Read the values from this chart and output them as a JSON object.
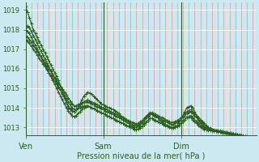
{
  "xlabel": "Pression niveau de la mer( hPa )",
  "bg_color": "#cce8f0",
  "line_color": "#2d6020",
  "tick_color": "#2d6020",
  "axis_color": "#2d6020",
  "red_grid_color": "#e88080",
  "white_grid_color": "#ffffff",
  "ylim": [
    1012.6,
    1019.4
  ],
  "yticks": [
    1013,
    1014,
    1015,
    1016,
    1017,
    1018,
    1019
  ],
  "day_labels": [
    "Ven",
    "Sam",
    "Dim"
  ],
  "day_positions": [
    0,
    40,
    80
  ],
  "total_points": 120,
  "series": [
    [
      1019.2,
      1018.9,
      1018.6,
      1018.3,
      1018.0,
      1017.8,
      1017.6,
      1017.4,
      1017.2,
      1017.0,
      1016.8,
      1016.6,
      1016.4,
      1016.2,
      1016.0,
      1015.8,
      1015.6,
      1015.4,
      1015.1,
      1014.9,
      1014.6,
      1014.3,
      1014.0,
      1013.9,
      1013.85,
      1013.8,
      1013.9,
      1014.0,
      1014.2,
      1014.4,
      1014.6,
      1014.7,
      1014.8,
      1014.75,
      1014.7,
      1014.6,
      1014.5,
      1014.4,
      1014.3,
      1014.2,
      1014.15,
      1014.1,
      1014.05,
      1014.0,
      1013.95,
      1013.9,
      1013.85,
      1013.8,
      1013.7,
      1013.6,
      1013.5,
      1013.4,
      1013.3,
      1013.2,
      1013.1,
      1013.05,
      1013.0,
      1013.0,
      1013.05,
      1013.1,
      1013.2,
      1013.35,
      1013.5,
      1013.6,
      1013.7,
      1013.7,
      1013.65,
      1013.6,
      1013.5,
      1013.4,
      1013.3,
      1013.2,
      1013.15,
      1013.1,
      1013.05,
      1013.0,
      1013.0,
      1013.05,
      1013.1,
      1013.2,
      1013.4,
      1013.6,
      1013.8,
      1014.0,
      1014.05,
      1014.1,
      1014.0,
      1013.8,
      1013.6,
      1013.4,
      1013.2,
      1013.1,
      1013.0,
      1012.95,
      1012.9,
      1012.88,
      1012.86,
      1012.84,
      1012.82,
      1012.8,
      1012.78,
      1012.76,
      1012.74,
      1012.72,
      1012.7,
      1012.68,
      1012.66,
      1012.64,
      1012.62,
      1012.6,
      1012.58,
      1012.56,
      1012.54,
      1012.52,
      1012.5,
      1012.5,
      1012.5,
      1012.5,
      1012.5,
      1012.5
    ],
    [
      1018.0,
      1017.9,
      1017.8,
      1017.6,
      1017.4,
      1017.2,
      1017.0,
      1016.8,
      1016.6,
      1016.4,
      1016.2,
      1016.0,
      1015.8,
      1015.6,
      1015.4,
      1015.2,
      1015.0,
      1014.8,
      1014.6,
      1014.4,
      1014.2,
      1014.0,
      1013.85,
      1013.7,
      1013.6,
      1013.55,
      1013.6,
      1013.7,
      1013.8,
      1013.9,
      1014.0,
      1014.05,
      1014.1,
      1014.05,
      1014.0,
      1013.95,
      1013.9,
      1013.85,
      1013.8,
      1013.75,
      1013.7,
      1013.65,
      1013.6,
      1013.55,
      1013.5,
      1013.45,
      1013.4,
      1013.35,
      1013.3,
      1013.25,
      1013.2,
      1013.15,
      1013.1,
      1013.05,
      1013.0,
      1012.95,
      1012.9,
      1012.88,
      1012.92,
      1012.98,
      1013.05,
      1013.15,
      1013.25,
      1013.35,
      1013.45,
      1013.45,
      1013.4,
      1013.35,
      1013.3,
      1013.25,
      1013.2,
      1013.15,
      1013.1,
      1013.05,
      1013.0,
      1012.95,
      1012.95,
      1013.0,
      1013.05,
      1013.1,
      1013.2,
      1013.3,
      1013.4,
      1013.5,
      1013.5,
      1013.5,
      1013.4,
      1013.3,
      1013.2,
      1013.1,
      1013.0,
      1012.95,
      1012.9,
      1012.88,
      1012.86,
      1012.84,
      1012.82,
      1012.8,
      1012.78,
      1012.76,
      1012.74,
      1012.72,
      1012.7,
      1012.68,
      1012.66,
      1012.64,
      1012.62,
      1012.6,
      1012.58,
      1012.56,
      1012.54,
      1012.52,
      1012.5,
      1012.5,
      1012.5,
      1012.5,
      1012.5,
      1012.5,
      1012.5,
      1012.5
    ],
    [
      1017.9,
      1018.2,
      1018.1,
      1017.9,
      1017.7,
      1017.5,
      1017.3,
      1017.1,
      1016.9,
      1016.7,
      1016.5,
      1016.3,
      1016.1,
      1015.9,
      1015.7,
      1015.5,
      1015.3,
      1015.1,
      1014.9,
      1014.7,
      1014.5,
      1014.3,
      1014.1,
      1013.95,
      1013.85,
      1013.8,
      1013.9,
      1014.0,
      1014.1,
      1014.2,
      1014.3,
      1014.35,
      1014.4,
      1014.35,
      1014.3,
      1014.25,
      1014.2,
      1014.15,
      1014.1,
      1014.05,
      1014.0,
      1013.95,
      1013.9,
      1013.85,
      1013.8,
      1013.75,
      1013.7,
      1013.65,
      1013.6,
      1013.55,
      1013.5,
      1013.45,
      1013.4,
      1013.35,
      1013.3,
      1013.25,
      1013.2,
      1013.18,
      1013.22,
      1013.28,
      1013.35,
      1013.45,
      1013.55,
      1013.65,
      1013.75,
      1013.75,
      1013.7,
      1013.65,
      1013.6,
      1013.55,
      1013.5,
      1013.45,
      1013.4,
      1013.35,
      1013.3,
      1013.25,
      1013.25,
      1013.3,
      1013.35,
      1013.4,
      1013.5,
      1013.6,
      1013.7,
      1013.8,
      1013.85,
      1013.9,
      1013.8,
      1013.7,
      1013.6,
      1013.5,
      1013.4,
      1013.3,
      1013.2,
      1013.1,
      1013.0,
      1012.95,
      1012.9,
      1012.88,
      1012.86,
      1012.84,
      1012.82,
      1012.8,
      1012.78,
      1012.76,
      1012.74,
      1012.72,
      1012.7,
      1012.68,
      1012.66,
      1012.64,
      1012.62,
      1012.6,
      1012.58,
      1012.56,
      1012.54,
      1012.52,
      1012.5,
      1012.5,
      1012.5,
      1012.5
    ],
    [
      1017.7,
      1017.6,
      1017.5,
      1017.35,
      1017.2,
      1017.05,
      1016.9,
      1016.75,
      1016.6,
      1016.45,
      1016.3,
      1016.15,
      1016.0,
      1015.85,
      1015.7,
      1015.55,
      1015.4,
      1015.25,
      1015.1,
      1014.95,
      1014.8,
      1014.65,
      1014.5,
      1014.35,
      1014.2,
      1014.1,
      1014.1,
      1014.15,
      1014.2,
      1014.25,
      1014.3,
      1014.3,
      1014.3,
      1014.25,
      1014.2,
      1014.15,
      1014.1,
      1014.05,
      1014.0,
      1013.95,
      1013.9,
      1013.85,
      1013.8,
      1013.75,
      1013.7,
      1013.65,
      1013.6,
      1013.55,
      1013.5,
      1013.45,
      1013.4,
      1013.35,
      1013.3,
      1013.25,
      1013.2,
      1013.15,
      1013.1,
      1013.08,
      1013.12,
      1013.18,
      1013.25,
      1013.35,
      1013.45,
      1013.55,
      1013.65,
      1013.65,
      1013.6,
      1013.55,
      1013.5,
      1013.45,
      1013.4,
      1013.35,
      1013.3,
      1013.25,
      1013.2,
      1013.15,
      1013.15,
      1013.2,
      1013.25,
      1013.3,
      1013.4,
      1013.5,
      1013.6,
      1013.7,
      1013.75,
      1013.8,
      1013.7,
      1013.6,
      1013.5,
      1013.4,
      1013.3,
      1013.2,
      1013.1,
      1013.0,
      1012.95,
      1012.9,
      1012.88,
      1012.86,
      1012.84,
      1012.82,
      1012.8,
      1012.78,
      1012.76,
      1012.74,
      1012.72,
      1012.7,
      1012.68,
      1012.66,
      1012.64,
      1012.62,
      1012.6,
      1012.58,
      1012.56,
      1012.54,
      1012.52,
      1012.5,
      1012.5,
      1012.5,
      1012.5,
      1012.5
    ],
    [
      1017.5,
      1017.4,
      1017.3,
      1017.15,
      1017.0,
      1016.85,
      1016.7,
      1016.55,
      1016.4,
      1016.25,
      1016.1,
      1015.95,
      1015.8,
      1015.65,
      1015.5,
      1015.35,
      1015.2,
      1015.05,
      1014.9,
      1014.75,
      1014.6,
      1014.45,
      1014.3,
      1014.15,
      1014.0,
      1013.9,
      1013.9,
      1013.95,
      1014.0,
      1014.05,
      1014.1,
      1014.1,
      1014.1,
      1014.05,
      1014.0,
      1013.95,
      1013.9,
      1013.85,
      1013.8,
      1013.75,
      1013.7,
      1013.65,
      1013.6,
      1013.55,
      1013.5,
      1013.45,
      1013.4,
      1013.35,
      1013.3,
      1013.25,
      1013.2,
      1013.15,
      1013.1,
      1013.05,
      1013.0,
      1012.95,
      1012.9,
      1012.88,
      1012.92,
      1012.98,
      1013.05,
      1013.15,
      1013.25,
      1013.35,
      1013.45,
      1013.45,
      1013.4,
      1013.35,
      1013.3,
      1013.25,
      1013.2,
      1013.15,
      1013.1,
      1013.05,
      1013.0,
      1012.95,
      1012.95,
      1013.0,
      1013.05,
      1013.1,
      1013.2,
      1013.3,
      1013.4,
      1013.5,
      1013.55,
      1013.6,
      1013.5,
      1013.4,
      1013.3,
      1013.2,
      1013.1,
      1013.0,
      1012.95,
      1012.9,
      1012.88,
      1012.86,
      1012.84,
      1012.82,
      1012.8,
      1012.78,
      1012.76,
      1012.74,
      1012.72,
      1012.7,
      1012.68,
      1012.66,
      1012.64,
      1012.62,
      1012.6,
      1012.58,
      1012.56,
      1012.54,
      1012.52,
      1012.5,
      1012.5,
      1012.5,
      1012.5,
      1012.5,
      1012.5,
      1012.5
    ]
  ],
  "minor_grid_step": 3,
  "major_grid_step": 24,
  "xlabel_fontsize": 7,
  "tick_fontsize": 6,
  "linewidth": 0.9,
  "markersize": 2.5
}
